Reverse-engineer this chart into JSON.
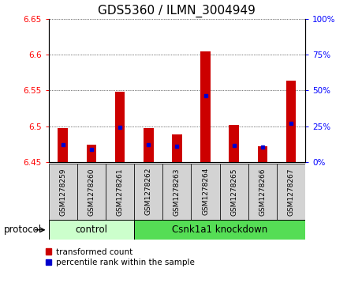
{
  "title": "GDS5360 / ILMN_3004949",
  "samples": [
    "GSM1278259",
    "GSM1278260",
    "GSM1278261",
    "GSM1278262",
    "GSM1278263",
    "GSM1278264",
    "GSM1278265",
    "GSM1278266",
    "GSM1278267"
  ],
  "bar_values": [
    6.497,
    6.474,
    6.548,
    6.498,
    6.489,
    6.604,
    6.502,
    6.472,
    6.564
  ],
  "bar_base": 6.45,
  "blue_values": [
    6.474,
    6.468,
    6.499,
    6.474,
    6.472,
    6.543,
    6.473,
    6.471,
    6.504
  ],
  "ylim": [
    6.45,
    6.65
  ],
  "yticks_left": [
    6.45,
    6.5,
    6.55,
    6.6,
    6.65
  ],
  "yticks_right": [
    0,
    25,
    50,
    75,
    100
  ],
  "control_samples": 3,
  "knockdown_samples": 6,
  "control_label": "control",
  "knockdown_label": "Csnk1a1 knockdown",
  "protocol_label": "protocol",
  "legend_red": "transformed count",
  "legend_blue": "percentile rank within the sample",
  "bar_color": "#cc0000",
  "blue_color": "#0000cc",
  "control_bg": "#ccffcc",
  "knockdown_bg": "#55dd55",
  "sample_box_bg": "#d3d3d3",
  "bar_width": 0.35,
  "title_fontsize": 11,
  "tick_fontsize": 7.5,
  "sample_fontsize": 6.5,
  "legend_fontsize": 7.5,
  "proto_fontsize": 8.5
}
